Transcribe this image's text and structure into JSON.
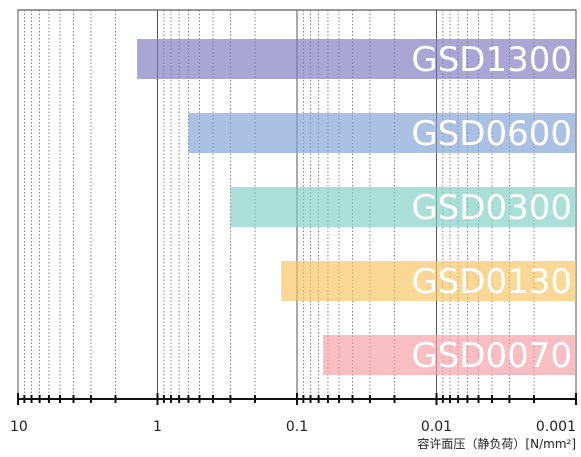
{
  "chart_data": {
    "type": "bar",
    "orientation": "horizontal",
    "x_scale": "log",
    "x_reversed": true,
    "xlim": [
      10,
      0.001
    ],
    "xlabel": "容许面压（静负荷）[N/mm²]",
    "x_ticks": [
      "10",
      "1",
      "0.1",
      "0.01",
      "0.001"
    ],
    "grid": true,
    "bar_opacity": 0.65,
    "series": [
      {
        "name": "GSD1300",
        "range": [
          1.4,
          0.001
        ],
        "color": "#7B76BE"
      },
      {
        "name": "GSD0600",
        "range": [
          0.6,
          0.001
        ],
        "color": "#7D9FD6"
      },
      {
        "name": "GSD0300",
        "range": [
          0.3,
          0.001
        ],
        "color": "#7CCEC1"
      },
      {
        "name": "GSD0130",
        "range": [
          0.13,
          0.001
        ],
        "color": "#F9C15E"
      },
      {
        "name": "GSD0070",
        "range": [
          0.065,
          0.001
        ],
        "color": "#F49BA0"
      }
    ]
  }
}
